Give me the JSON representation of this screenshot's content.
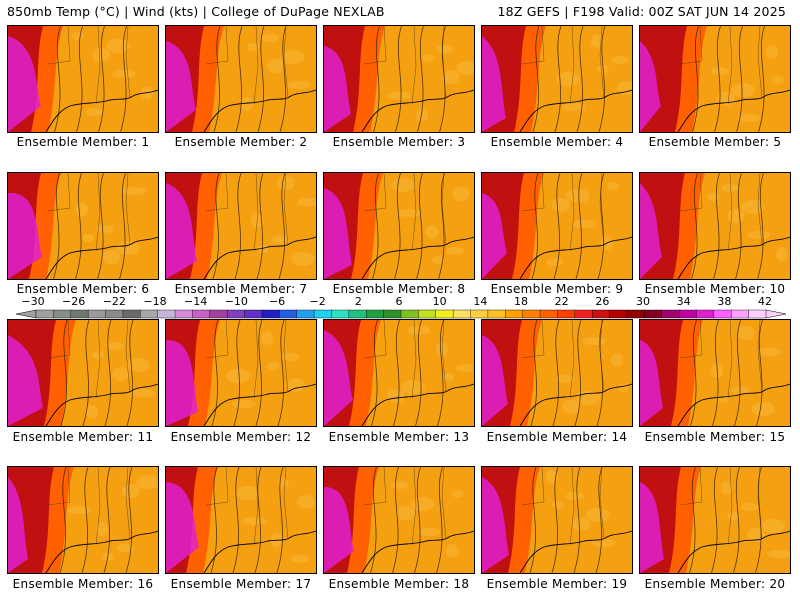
{
  "header": {
    "left": "850mb Temp (°C) | Wind (kts) | College of DuPage NEXLAB",
    "right": "18Z GEFS | F198 Valid: 00Z SAT JUN 14 2025"
  },
  "member_label_prefix": "Ensemble Member: ",
  "members": [
    "1",
    "2",
    "3",
    "4",
    "5",
    "6",
    "7",
    "8",
    "9",
    "10",
    "11",
    "12",
    "13",
    "14",
    "15",
    "16",
    "17",
    "18",
    "19",
    "20"
  ],
  "colorbar": {
    "tick_labels": [
      "−30",
      "−26",
      "−22",
      "−18",
      "−14",
      "−10",
      "−6",
      "−2",
      "2",
      "6",
      "10",
      "14",
      "18",
      "22",
      "26",
      "30",
      "34",
      "38",
      "42"
    ],
    "colors": [
      "#a0a0a0",
      "#868f86",
      "#6e7a6e",
      "#9a9a9a",
      "#8a8a8a",
      "#6a6a6a",
      "#a8a8a8",
      "#c8b4d8",
      "#d88cd8",
      "#c860c8",
      "#a040a0",
      "#8040c0",
      "#6030c8",
      "#2020c0",
      "#2060e0",
      "#20a0f0",
      "#20d0f0",
      "#30e0c0",
      "#20c080",
      "#20a040",
      "#30902a",
      "#80c020",
      "#c0e020",
      "#f0f020",
      "#ffe060",
      "#ffd040",
      "#ffc020",
      "#ffa000",
      "#ff8000",
      "#ff6000",
      "#ff4000",
      "#f02020",
      "#d01010",
      "#b00000",
      "#900000",
      "#800020",
      "#a00070",
      "#c000a0",
      "#e020d0",
      "#ff60ff",
      "#ffa0ff",
      "#ffd0ff"
    ]
  },
  "colors": {
    "field_base": "#f4a010",
    "warm_band": "#ff6000",
    "hot_band": "#c01010",
    "extreme": "#e020d0",
    "coast_line": "#000000"
  }
}
